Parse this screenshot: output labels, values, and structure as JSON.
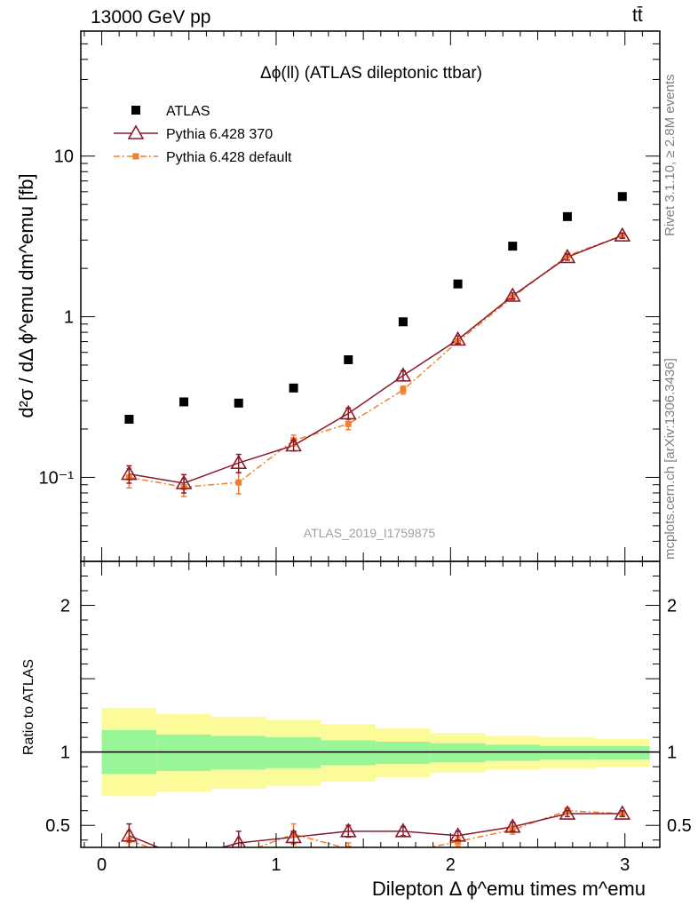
{
  "header": {
    "left": "13000 GeV pp",
    "right": "tt̄"
  },
  "side_labels": {
    "rivet": "Rivet 3.1.10, ≥ 2.8M events",
    "mcplots": "mcplots.cern.ch [arXiv:1306.3436]"
  },
  "colors": {
    "data": "#000000",
    "pythia370": "#8b1a2b",
    "pythia_default": "#f08030",
    "band_inner": "#98f598",
    "band_outer": "#fbfb9a",
    "watermark": "#a0a0a0"
  },
  "chart_data": [
    {
      "type": "scatter",
      "panel": "main",
      "title": "Δϕ(ll) (ATLAS dileptonic ttbar)",
      "watermark": "ATLAS_2019_I1759875",
      "ylabel": "d²σ / dΔ ϕ^emu dm^emu [fb]",
      "yscale": "log",
      "xlim": [
        -0.12,
        3.2
      ],
      "ylim": [
        0.03,
        60
      ],
      "yticks": [
        {
          "value": 0.1,
          "label": "10⁻¹"
        },
        {
          "value": 1,
          "label": "1"
        },
        {
          "value": 10,
          "label": "10"
        }
      ],
      "legend_position": "top-left",
      "series": [
        {
          "name": "ATLAS",
          "marker": "square",
          "x": [
            0.157,
            0.471,
            0.785,
            1.1,
            1.414,
            1.728,
            2.042,
            2.356,
            2.67,
            2.985
          ],
          "y": [
            0.23,
            0.295,
            0.29,
            0.36,
            0.54,
            0.93,
            1.6,
            2.75,
            4.2,
            5.6
          ]
        },
        {
          "name": "Pythia 6.428 370",
          "marker": "open-triangle",
          "line": "solid",
          "x": [
            0.157,
            0.471,
            0.785,
            1.1,
            1.414,
            1.728,
            2.042,
            2.356,
            2.67,
            2.985
          ],
          "y": [
            0.105,
            0.092,
            0.123,
            0.158,
            0.25,
            0.43,
            0.72,
            1.35,
            2.35,
            3.2
          ],
          "err": [
            0.013,
            0.012,
            0.016,
            0.012,
            0.02,
            0.03,
            0.04,
            0.06,
            0.1,
            0.12
          ]
        },
        {
          "name": "Pythia 6.428 default",
          "marker": "filled-square-small",
          "line": "dash-dot",
          "x": [
            0.157,
            0.471,
            0.785,
            1.1,
            1.414,
            1.728,
            2.042,
            2.356,
            2.67,
            2.985
          ],
          "y": [
            0.1,
            0.087,
            0.093,
            0.17,
            0.215,
            0.35,
            0.7,
            1.32,
            2.4,
            3.2
          ],
          "err": [
            0.014,
            0.011,
            0.014,
            0.013,
            0.017,
            0.02,
            0.03,
            0.05,
            0.08,
            0.1
          ]
        }
      ]
    },
    {
      "type": "scatter",
      "panel": "ratio",
      "ylabel": "Ratio to ATLAS",
      "xlabel": "Dilepton Δ ϕ^emu times m^emu",
      "xlim": [
        -0.12,
        3.2
      ],
      "ylim": [
        0.35,
        2.3
      ],
      "xticks": [
        0,
        1,
        2,
        3
      ],
      "yticks": [
        0.5,
        1,
        2
      ],
      "bins": [
        0.0,
        0.314,
        0.628,
        0.942,
        1.257,
        1.571,
        1.885,
        2.199,
        2.513,
        2.827,
        3.142
      ],
      "band_inner": [
        [
          0.85,
          1.15
        ],
        [
          0.87,
          1.12
        ],
        [
          0.88,
          1.11
        ],
        [
          0.89,
          1.1
        ],
        [
          0.91,
          1.08
        ],
        [
          0.92,
          1.07
        ],
        [
          0.93,
          1.06
        ],
        [
          0.94,
          1.05
        ],
        [
          0.95,
          1.04
        ],
        [
          0.95,
          1.04
        ]
      ],
      "band_outer": [
        [
          0.7,
          1.3
        ],
        [
          0.73,
          1.26
        ],
        [
          0.75,
          1.24
        ],
        [
          0.77,
          1.22
        ],
        [
          0.8,
          1.19
        ],
        [
          0.83,
          1.16
        ],
        [
          0.86,
          1.13
        ],
        [
          0.88,
          1.11
        ],
        [
          0.89,
          1.1
        ],
        [
          0.9,
          1.09
        ]
      ],
      "series": [
        {
          "name": "Pythia 6.428 370",
          "x": [
            0.157,
            0.471,
            0.785,
            1.1,
            1.414,
            1.728,
            2.042,
            2.356,
            2.67,
            2.985
          ],
          "y": [
            0.43,
            0.28,
            0.38,
            0.42,
            0.46,
            0.46,
            0.43,
            0.49,
            0.58,
            0.58
          ],
          "err": [
            0.08,
            0.05,
            0.08,
            0.04,
            0.04,
            0.03,
            0.03,
            0.03,
            0.02,
            0.02
          ]
        },
        {
          "name": "Pythia 6.428 default",
          "x": [
            0.157,
            0.471,
            0.785,
            1.1,
            1.414,
            1.728,
            2.042,
            2.356,
            2.67,
            2.985
          ],
          "y": [
            0.4,
            0.26,
            0.3,
            0.44,
            0.34,
            0.31,
            0.39,
            0.47,
            0.6,
            0.58
          ],
          "err": [
            0.06,
            0.04,
            0.04,
            0.07,
            0.04,
            0.03,
            0.03,
            0.03,
            0.02,
            0.02
          ]
        }
      ]
    }
  ]
}
